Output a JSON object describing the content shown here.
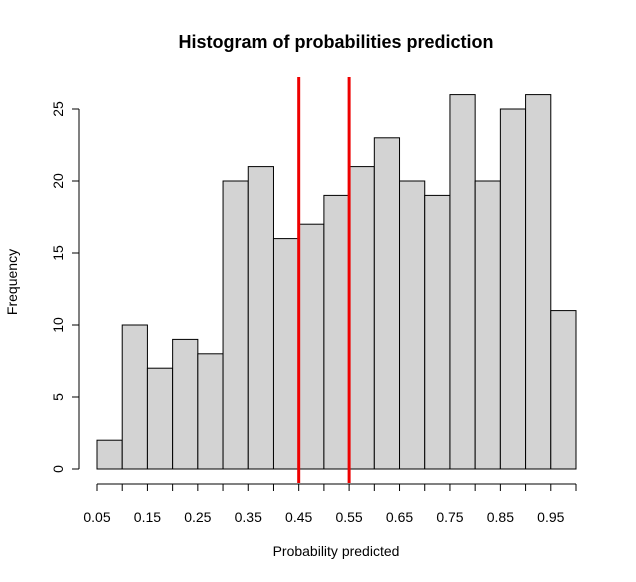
{
  "chart_data": {
    "type": "bar",
    "title": "Histogram of probabilities prediction",
    "xlabel": "Probability predicted",
    "ylabel": "Frequency",
    "bin_width": 0.05,
    "bins": [
      {
        "start": 0.05,
        "end": 0.1,
        "count": 2
      },
      {
        "start": 0.1,
        "end": 0.15,
        "count": 10
      },
      {
        "start": 0.15,
        "end": 0.2,
        "count": 7
      },
      {
        "start": 0.2,
        "end": 0.25,
        "count": 9
      },
      {
        "start": 0.25,
        "end": 0.3,
        "count": 8
      },
      {
        "start": 0.3,
        "end": 0.35,
        "count": 20
      },
      {
        "start": 0.35,
        "end": 0.4,
        "count": 21
      },
      {
        "start": 0.4,
        "end": 0.45,
        "count": 16
      },
      {
        "start": 0.45,
        "end": 0.5,
        "count": 17
      },
      {
        "start": 0.5,
        "end": 0.55,
        "count": 19
      },
      {
        "start": 0.55,
        "end": 0.6,
        "count": 21
      },
      {
        "start": 0.6,
        "end": 0.65,
        "count": 23
      },
      {
        "start": 0.65,
        "end": 0.7,
        "count": 20
      },
      {
        "start": 0.7,
        "end": 0.75,
        "count": 19
      },
      {
        "start": 0.75,
        "end": 0.8,
        "count": 26
      },
      {
        "start": 0.8,
        "end": 0.85,
        "count": 20
      },
      {
        "start": 0.85,
        "end": 0.9,
        "count": 25
      },
      {
        "start": 0.9,
        "end": 0.95,
        "count": 26
      },
      {
        "start": 0.95,
        "end": 1.0,
        "count": 11
      }
    ],
    "xlim": [
      0.05,
      1.0
    ],
    "ylim": [
      0,
      27
    ],
    "x_ticks": [
      0.05,
      0.1,
      0.15,
      0.2,
      0.25,
      0.3,
      0.35,
      0.4,
      0.45,
      0.5,
      0.55,
      0.6,
      0.65,
      0.7,
      0.75,
      0.8,
      0.85,
      0.9,
      0.95,
      1.0
    ],
    "x_tick_labels": [
      "0.05",
      "0.15",
      "0.25",
      "0.35",
      "0.45",
      "0.55",
      "0.65",
      "0.75",
      "0.85",
      "0.95"
    ],
    "x_tick_label_values": [
      0.05,
      0.15,
      0.25,
      0.35,
      0.45,
      0.55,
      0.65,
      0.75,
      0.85,
      0.95
    ],
    "y_ticks": [
      0,
      5,
      10,
      15,
      20,
      25
    ],
    "y_tick_labels": [
      "0",
      "5",
      "10",
      "15",
      "20",
      "25"
    ],
    "vertical_lines": [
      {
        "x": 0.45,
        "color": "#ee0000"
      },
      {
        "x": 0.55,
        "color": "#ee0000"
      }
    ],
    "grid": false,
    "legend": "none",
    "colors": {
      "bar_fill": "#d3d3d3",
      "bar_stroke": "#000000",
      "axis": "#000000",
      "reference_line": "#ee0000"
    }
  }
}
